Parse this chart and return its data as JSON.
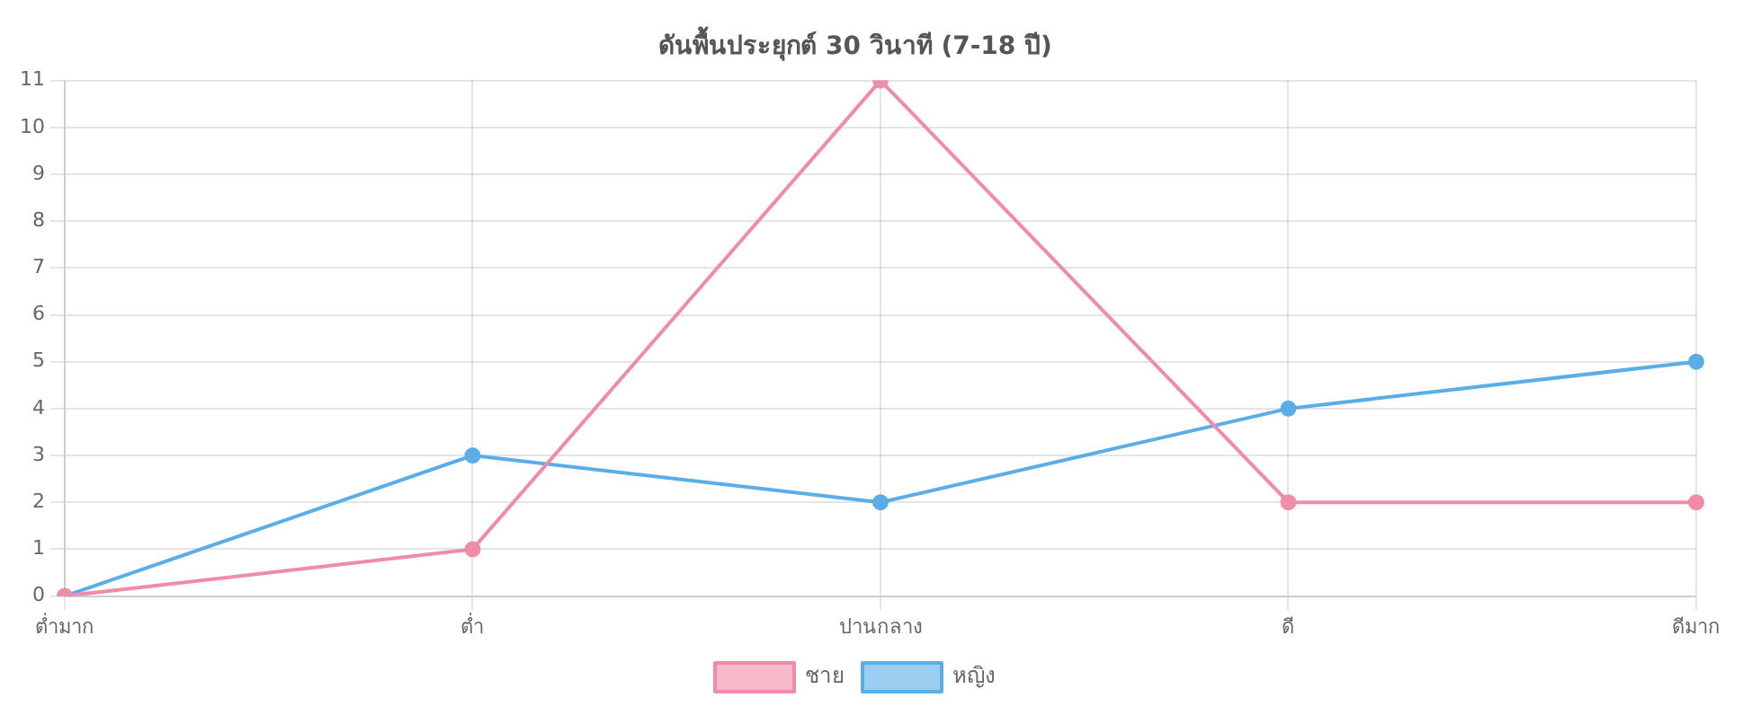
{
  "chart_data": {
    "type": "line",
    "title": "ดันพื้นประยุกต์ 30 วินาที (7-18 ปี)",
    "categories": [
      "ต่ำมาก",
      "ต่ำ",
      "ปานกลาง",
      "ดี",
      "ดีมาก"
    ],
    "series": [
      {
        "name": "ชาย",
        "color": "#f08ca6",
        "values": [
          0,
          1,
          11,
          2,
          2
        ]
      },
      {
        "name": "หญิง",
        "color": "#5aaee8",
        "values": [
          0,
          3,
          2,
          4,
          5
        ]
      }
    ],
    "ylim": [
      0,
      11
    ],
    "yticks": [
      0,
      1,
      2,
      3,
      4,
      5,
      6,
      7,
      8,
      9,
      10,
      11
    ],
    "grid": true,
    "legend": "bottom",
    "marker": "circle",
    "line_style": "solid"
  }
}
